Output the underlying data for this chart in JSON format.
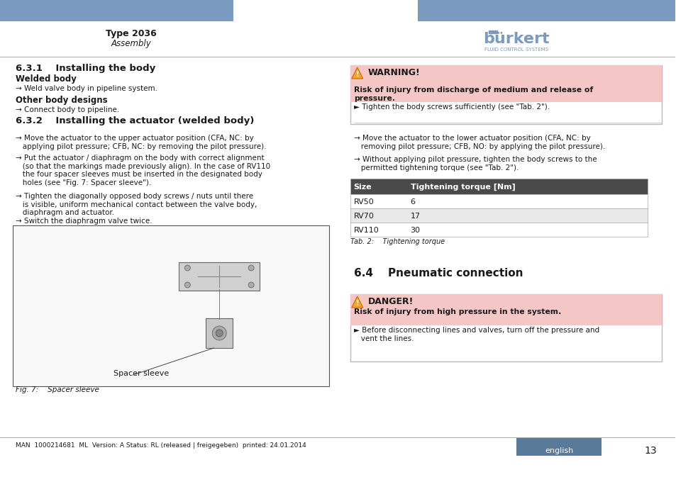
{
  "page_bg": "#ffffff",
  "header_bar_color": "#7a9bbf",
  "header_title": "Type 2036",
  "header_subtitle": "Assembly",
  "burkert_color": "#7a9bbf",
  "warning_bg": "#f5c6c6",
  "warning_border": "#cc0000",
  "warning_title": "WARNING!",
  "warning_icon_color": "#e8a000",
  "warning_text": "Risk of injury from discharge of medium and release of\npressure.",
  "warning_bullet": "► Tighten the body screws sufficiently (see \"Tab. 2\").",
  "danger_bg": "#f5c6c6",
  "danger_border": "#cc0000",
  "danger_title": "DANGER!",
  "danger_text": "Risk of injury from high pressure in the system.",
  "danger_bullet": "► Before disconnecting lines and valves, turn off the pressure and\n   vent the lines.",
  "section_631_title": "6.3.1    Installing the body",
  "welded_body_title": "Welded body",
  "welded_body_text": "→ Weld valve body in pipeline system.",
  "other_body_title": "Other body designs",
  "other_body_text": "→ Connect body to pipeline.",
  "section_632_title": "6.3.2    Installing the actuator (welded body)",
  "bullet1": "→ Move the actuator to the upper actuator position (CFA, NC: by\n   applying pilot pressure; CFB, NC: by removing the pilot pressure).",
  "bullet2": "→ Put the actuator / diaphragm on the body with correct alignment\n   (so that the markings made previously align). In the case of RV110\n   the four spacer sleeves must be inserted in the designated body\n   holes (see \"Fig. 7: Spacer sleeve\").",
  "bullet3": "→ Tighten the diagonally opposed body screws / nuts until there\n   is visible, uniform mechanical contact between the valve body,\n   diaphragm and actuator.",
  "bullet4": "→ Switch the diaphragm valve twice.",
  "fig_label": "Fig. 7:    Spacer sleeve",
  "fig_caption": "Spacer sleeve",
  "right_bullet1": "→ Move the actuator to the lower actuator position (CFA, NC: by\n   removing pilot pressure; CFB, NO: by applying the pilot pressure).",
  "right_bullet2": "→ Without applying pilot pressure, tighten the body screws to the\n   permitted tightening torque (see \"Tab. 2\").",
  "table_header_bg": "#4a4a4a",
  "table_header_text_color": "#ffffff",
  "table_row1_bg": "#ffffff",
  "table_row2_bg": "#e8e8e8",
  "table_col1": "Size",
  "table_col2": "Tightening torque [Nm]",
  "table_rows": [
    [
      "RV50",
      "6"
    ],
    [
      "RV70",
      "17"
    ],
    [
      "RV110",
      "30"
    ]
  ],
  "table_caption": "Tab. 2:    Tightening torque",
  "section_64_title": "6.4    Pneumatic connection",
  "footer_text": "MAN  1000214681  ML  Version: A Status: RL (released | freigegeben)  printed: 24.01.2014",
  "footer_lang_bg": "#5a7a9a",
  "footer_lang_text": "english",
  "footer_page": "13",
  "divider_color": "#888888",
  "text_color": "#1a1a1a",
  "link_color": "#3355aa"
}
